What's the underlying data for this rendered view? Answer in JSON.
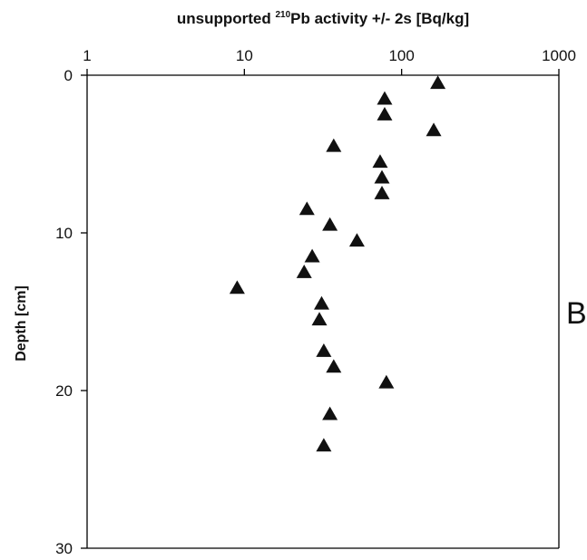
{
  "chart_data": {
    "type": "scatter",
    "title": "",
    "xlabel": {
      "prefix": "unsupported ",
      "superscript": "210",
      "suffix": "Pb activity +/- 2s [Bq/kg]"
    },
    "ylabel": "Depth [cm]",
    "x_scale": "log",
    "xlim": [
      1,
      1000
    ],
    "ylim": [
      0,
      30
    ],
    "y_inverted": true,
    "x_ticks": [
      1,
      10,
      100,
      1000
    ],
    "x_tick_labels": [
      "1",
      "10",
      "100",
      "1000"
    ],
    "y_ticks": [
      0,
      10,
      20,
      30
    ],
    "y_tick_labels": [
      "0",
      "10",
      "20",
      "30"
    ],
    "grid": false,
    "marker": "triangle",
    "marker_color": "#111111",
    "panel_label": "B",
    "series": [
      {
        "points": [
          {
            "x": 170,
            "y": 0.5
          },
          {
            "x": 78,
            "y": 1.5
          },
          {
            "x": 78,
            "y": 2.5
          },
          {
            "x": 160,
            "y": 3.5
          },
          {
            "x": 37,
            "y": 4.5
          },
          {
            "x": 73,
            "y": 5.5
          },
          {
            "x": 75,
            "y": 6.5
          },
          {
            "x": 75,
            "y": 7.5
          },
          {
            "x": 25,
            "y": 8.5
          },
          {
            "x": 35,
            "y": 9.5
          },
          {
            "x": 52,
            "y": 10.5
          },
          {
            "x": 27,
            "y": 11.5
          },
          {
            "x": 24,
            "y": 12.5
          },
          {
            "x": 9,
            "y": 13.5
          },
          {
            "x": 31,
            "y": 14.5
          },
          {
            "x": 30,
            "y": 15.5
          },
          {
            "x": 32,
            "y": 17.5
          },
          {
            "x": 37,
            "y": 18.5
          },
          {
            "x": 80,
            "y": 19.5
          },
          {
            "x": 35,
            "y": 21.5
          },
          {
            "x": 32,
            "y": 23.5
          }
        ]
      }
    ]
  }
}
